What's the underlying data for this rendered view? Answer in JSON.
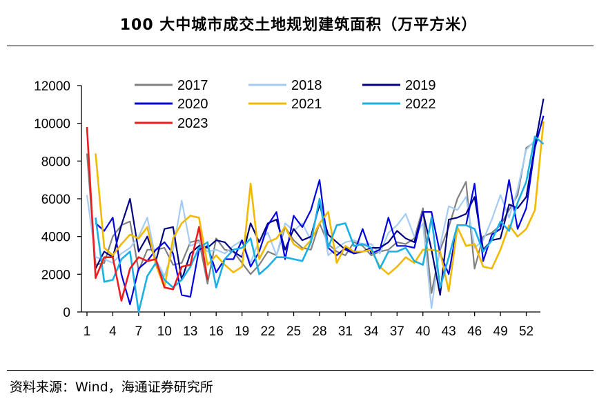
{
  "title": "100 大中城市成交土地规划建筑面积（万平方米）",
  "source": "资料来源：Wind，海通证券研究所",
  "chart_data": {
    "type": "line",
    "title": "100 大中城市成交土地规划建筑面积（万平方米）",
    "xlabel": "",
    "ylabel": "",
    "ylim": [
      0,
      12000
    ],
    "yticks": [
      0,
      2000,
      4000,
      6000,
      8000,
      10000,
      12000
    ],
    "xlim": [
      1,
      53
    ],
    "xticks": [
      1,
      4,
      7,
      10,
      13,
      16,
      19,
      22,
      25,
      28,
      31,
      34,
      37,
      40,
      43,
      46,
      49,
      52
    ],
    "grid": false,
    "legend_position": "top",
    "series": [
      {
        "name": "2017",
        "color": "#808080",
        "width": 2.2,
        "start": 1,
        "values": [
          8400,
          2500,
          2600,
          4000,
          4600,
          4800,
          2200,
          3300,
          3300,
          3400,
          2500,
          2600,
          3700,
          3800,
          1500,
          3900,
          3300,
          3200,
          2600,
          2000,
          2500,
          3200,
          3000,
          4500,
          3800,
          3400,
          3300,
          4700,
          3600,
          3200,
          3000,
          3700,
          3500,
          3000,
          3200,
          3300,
          3700,
          3600,
          3900,
          5500,
          1000,
          3300,
          4500,
          6000,
          6900,
          2300,
          4000,
          4200,
          4600,
          5400,
          6200,
          8700,
          9000
        ]
      },
      {
        "name": "2018",
        "color": "#a6cbf2",
        "width": 2.2,
        "start": 1,
        "values": [
          6200,
          2900,
          2800,
          2600,
          3100,
          3400,
          4000,
          5000,
          2800,
          1900,
          3300,
          5900,
          3500,
          3700,
          3200,
          3300,
          3100,
          3500,
          3800,
          2600,
          3800,
          4200,
          3000,
          4700,
          4300,
          4700,
          3800,
          5900,
          3000,
          3400,
          3700,
          3800,
          3600,
          3600,
          3100,
          4200,
          4600,
          5200,
          4000,
          4700,
          200,
          3500,
          5600,
          5400,
          6100,
          3400,
          3800,
          4900,
          6200,
          5000,
          6500,
          8600,
          9100
        ]
      },
      {
        "name": "2019",
        "color": "#000080",
        "width": 2.2,
        "start": 2,
        "values": [
          2300,
          3200,
          2900,
          4600,
          6000,
          3200,
          4000,
          2700,
          4400,
          4500,
          1700,
          3100,
          3500,
          3400,
          3800,
          3700,
          3200,
          2900,
          4700,
          3700,
          4700,
          4900,
          3300,
          4400,
          3800,
          4000,
          5700,
          4100,
          3700,
          3300,
          3100,
          3200,
          3400,
          3400,
          3700,
          4300,
          3900,
          3700,
          5300,
          3300,
          900,
          4900,
          5000,
          5200,
          6100,
          3300,
          3800,
          3900,
          5700,
          5500,
          6100,
          8800,
          11300
        ]
      },
      {
        "name": "2020",
        "color": "#0000e0",
        "width": 2.2,
        "start": 2,
        "values": [
          4700,
          4300,
          5000,
          2000,
          400,
          2300,
          2700,
          3300,
          3700,
          3100,
          900,
          800,
          3300,
          3500,
          2100,
          2800,
          2800,
          3800,
          2400,
          3200,
          4600,
          5300,
          2800,
          5100,
          4500,
          5400,
          7000,
          3400,
          3000,
          3400,
          3100,
          4400,
          3100,
          3300,
          5000,
          3500,
          3500,
          3400,
          5300,
          5300,
          3100,
          2000,
          4600,
          4600,
          6800,
          2700,
          4100,
          4400,
          7000,
          4400,
          5500,
          8700,
          10400
        ]
      },
      {
        "name": "2021",
        "color": "#f2b900",
        "width": 2.6,
        "start": 2,
        "values": [
          8400,
          3400,
          3000,
          3600,
          4100,
          3900,
          4500,
          2500,
          1300,
          3900,
          4700,
          5100,
          5000,
          2500,
          3000,
          2500,
          2100,
          2400,
          6800,
          2800,
          3700,
          3900,
          4500,
          3600,
          3300,
          3800,
          4700,
          5300,
          2600,
          3500,
          3200,
          3200,
          3300,
          2400,
          2000,
          2400,
          2900,
          2600,
          3300,
          3300,
          3200,
          1100,
          4500,
          3500,
          3600,
          2400,
          2300,
          3300,
          4600,
          4000,
          4400,
          5400,
          10100
        ]
      },
      {
        "name": "2022",
        "color": "#1ab0e6",
        "width": 2.6,
        "start": 2,
        "values": [
          5000,
          1600,
          1700,
          2800,
          3200,
          0,
          1900,
          2600,
          1700,
          1300,
          1700,
          2400,
          3400,
          3700,
          1300,
          2800,
          3300,
          3400,
          3900,
          2000,
          2400,
          2900,
          2900,
          2800,
          2700,
          3700,
          6000,
          3400,
          4600,
          4700,
          3500,
          3600,
          3400,
          2300,
          3200,
          3200,
          3400,
          2700,
          2500,
          5000,
          1300,
          2900,
          4600,
          4600,
          4400,
          3200,
          3800,
          4800,
          4300,
          5800,
          6900,
          9300,
          8900
        ]
      },
      {
        "name": "2023",
        "color": "#ee1c1c",
        "width": 2.6,
        "start": 1,
        "values": [
          9800,
          1800,
          2900,
          2900,
          600,
          2300,
          2900,
          2700,
          2800,
          1300,
          1200,
          2400,
          2500,
          4500,
          1700
        ]
      }
    ]
  }
}
